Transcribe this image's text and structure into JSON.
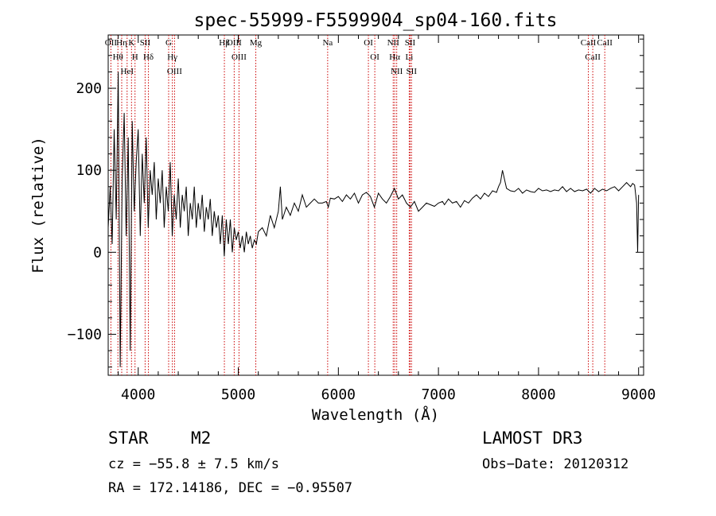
{
  "chart_data": {
    "type": "line",
    "title": "spec-55999-F5599904_sp04-160.fits",
    "xlabel": "Wavelength (Å)",
    "ylabel": "Flux (relative)",
    "xlim": [
      3700,
      9050
    ],
    "ylim": [
      -150,
      265
    ],
    "x_ticks": [
      4000,
      5000,
      6000,
      7000,
      8000,
      9000
    ],
    "x_tick_labels": [
      "4000",
      "5000",
      "6000",
      "7000",
      "8000",
      "9000"
    ],
    "y_ticks": [
      -100,
      0,
      100,
      200
    ],
    "y_tick_labels": [
      "−100",
      "0",
      "100",
      "200"
    ],
    "series": [
      {
        "name": "spectrum",
        "x": [
          3700,
          3720,
          3740,
          3760,
          3780,
          3800,
          3820,
          3840,
          3860,
          3880,
          3900,
          3920,
          3940,
          3960,
          3980,
          4000,
          4020,
          4040,
          4060,
          4080,
          4100,
          4120,
          4140,
          4160,
          4180,
          4200,
          4220,
          4240,
          4260,
          4280,
          4300,
          4320,
          4340,
          4360,
          4380,
          4400,
          4420,
          4440,
          4460,
          4480,
          4500,
          4520,
          4540,
          4560,
          4580,
          4600,
          4620,
          4640,
          4660,
          4680,
          4700,
          4720,
          4740,
          4760,
          4780,
          4800,
          4820,
          4840,
          4860,
          4880,
          4900,
          4920,
          4940,
          4960,
          4980,
          5000,
          5020,
          5040,
          5060,
          5080,
          5100,
          5120,
          5140,
          5160,
          5180,
          5200,
          5240,
          5280,
          5320,
          5360,
          5400,
          5420,
          5440,
          5480,
          5520,
          5560,
          5600,
          5640,
          5680,
          5720,
          5760,
          5800,
          5840,
          5880,
          5900,
          5920,
          5960,
          6000,
          6040,
          6080,
          6120,
          6160,
          6200,
          6240,
          6280,
          6320,
          6360,
          6400,
          6440,
          6480,
          6520,
          6560,
          6600,
          6640,
          6680,
          6720,
          6760,
          6800,
          6840,
          6880,
          6920,
          6960,
          7000,
          7040,
          7060,
          7100,
          7140,
          7180,
          7220,
          7260,
          7300,
          7340,
          7380,
          7420,
          7460,
          7500,
          7540,
          7580,
          7600,
          7620,
          7640,
          7680,
          7720,
          7760,
          7800,
          7840,
          7880,
          7920,
          7960,
          8000,
          8040,
          8080,
          8120,
          8160,
          8200,
          8240,
          8280,
          8320,
          8360,
          8400,
          8440,
          8480,
          8520,
          8560,
          8600,
          8640,
          8680,
          8720,
          8760,
          8800,
          8840,
          8880,
          8920,
          8940,
          8960,
          8980,
          8990,
          9000
        ],
        "values": [
          30,
          80,
          10,
          150,
          40,
          220,
          -140,
          90,
          170,
          20,
          140,
          -120,
          160,
          50,
          110,
          150,
          20,
          120,
          60,
          140,
          30,
          100,
          70,
          110,
          40,
          90,
          60,
          100,
          30,
          80,
          50,
          110,
          20,
          70,
          40,
          90,
          30,
          70,
          50,
          80,
          20,
          60,
          40,
          80,
          30,
          60,
          40,
          70,
          25,
          55,
          40,
          65,
          20,
          50,
          30,
          45,
          10,
          45,
          -5,
          40,
          10,
          40,
          0,
          30,
          15,
          25,
          5,
          20,
          0,
          25,
          10,
          20,
          5,
          15,
          10,
          25,
          30,
          20,
          45,
          30,
          50,
          80,
          40,
          55,
          45,
          60,
          50,
          70,
          55,
          60,
          65,
          60,
          60,
          62,
          55,
          66,
          65,
          68,
          62,
          70,
          65,
          72,
          60,
          70,
          73,
          68,
          55,
          72,
          65,
          60,
          68,
          78,
          65,
          70,
          60,
          55,
          62,
          50,
          55,
          60,
          58,
          56,
          60,
          62,
          58,
          65,
          60,
          62,
          55,
          63,
          60,
          66,
          70,
          65,
          72,
          68,
          75,
          73,
          80,
          85,
          100,
          78,
          75,
          74,
          78,
          72,
          76,
          74,
          73,
          78,
          75,
          76,
          74,
          76,
          75,
          80,
          74,
          78,
          74,
          76,
          75,
          77,
          72,
          78,
          74,
          77,
          75,
          78,
          80,
          75,
          80,
          85,
          80,
          84,
          82,
          60,
          0,
          70
        ]
      }
    ],
    "lines": [
      {
        "label": "OII",
        "x": 3727
      },
      {
        "label": "Hθ",
        "x": 3797
      },
      {
        "label": "Hη",
        "x": 3835
      },
      {
        "label": "K",
        "x": 3933
      },
      {
        "label": "H",
        "x": 3968
      },
      {
        "label": "HeI",
        "x": 3889
      },
      {
        "label": "SII",
        "x": 4069
      },
      {
        "label": "Hδ",
        "x": 4102
      },
      {
        "label": "G",
        "x": 4304
      },
      {
        "label": "Hγ",
        "x": 4341
      },
      {
        "label": "OIII",
        "x": 4363
      },
      {
        "label": "Hβ",
        "x": 4861
      },
      {
        "label": "OIII",
        "x": 4959
      },
      {
        "label": "OIII",
        "x": 5007
      },
      {
        "label": "Mg",
        "x": 5175
      },
      {
        "label": "Na",
        "x": 5893
      },
      {
        "label": "OI",
        "x": 6300
      },
      {
        "label": "OI",
        "x": 6364
      },
      {
        "label": "NII",
        "x": 6548
      },
      {
        "label": "Hα",
        "x": 6563
      },
      {
        "label": "NII",
        "x": 6583
      },
      {
        "label": "SII",
        "x": 6717
      },
      {
        "label": "Li",
        "x": 6708
      },
      {
        "label": "SII",
        "x": 6731
      },
      {
        "label": "CaII",
        "x": 8498
      },
      {
        "label": "CaII",
        "x": 8542
      },
      {
        "label": "CaII",
        "x": 8662
      }
    ]
  },
  "annotations": {
    "class": "STAR",
    "subclass": "M2",
    "survey": "LAMOST DR3",
    "cz": "cz = −55.8 ± 7.5 km/s",
    "obs_date": "Obs−Date: 20120312",
    "coords": "RA = 172.14186, DEC =  −0.95507"
  },
  "colors": {
    "spectrum": "#000000",
    "line_marker": "#cc0000",
    "text": "#000000",
    "background": "#ffffff"
  }
}
